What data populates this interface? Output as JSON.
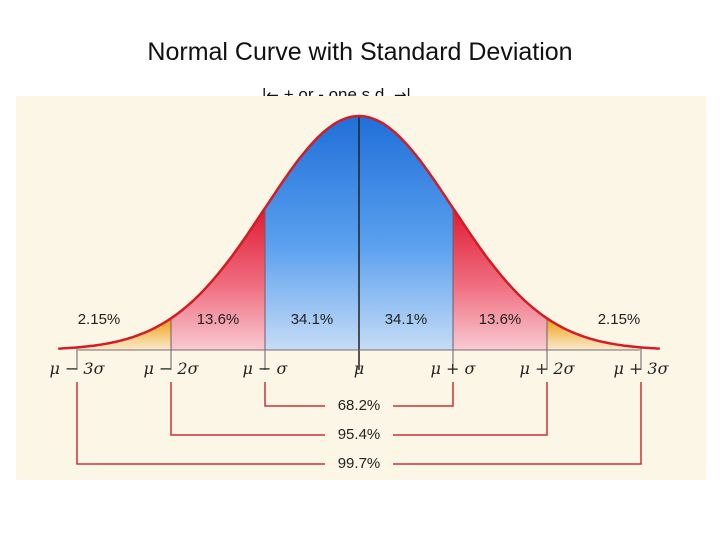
{
  "title": "Normal Curve with Standard Deviation",
  "subtitle": {
    "bar_left": "|",
    "arrow_left": "←",
    "text": " + or -  one s.d. ",
    "arrow_right": "→",
    "bar_right": "|"
  },
  "colors": {
    "background": "#fbf6e6",
    "center_band": "#2f7fe0",
    "second_band": "#e8253d",
    "tail_band": "#f2a51c",
    "curve": "#d41c24",
    "brackets": "#c9343a",
    "mean_line": "#222222"
  },
  "chart_data": {
    "type": "area",
    "title": "Normal Curve with Standard Deviation",
    "xlim": [
      -3.2,
      3.2
    ],
    "boundaries": [
      -3,
      -2,
      -1,
      0,
      1,
      2,
      3
    ],
    "tick_labels": [
      "μ − 3σ",
      "μ − 2σ",
      "μ − σ",
      "μ",
      "μ + σ",
      "μ + 2σ",
      "μ + 3σ"
    ],
    "segments": [
      {
        "from": -3,
        "to": -2,
        "percent": "2.15%",
        "band": "tail"
      },
      {
        "from": -2,
        "to": -1,
        "percent": "13.6%",
        "band": "second"
      },
      {
        "from": -1,
        "to": 0,
        "percent": "34.1%",
        "band": "center"
      },
      {
        "from": 0,
        "to": 1,
        "percent": "34.1%",
        "band": "center"
      },
      {
        "from": 1,
        "to": 2,
        "percent": "13.6%",
        "band": "second"
      },
      {
        "from": 2,
        "to": 3,
        "percent": "2.15%",
        "band": "tail"
      }
    ],
    "ranges": [
      {
        "from": -1,
        "to": 1,
        "percent": "68.2%"
      },
      {
        "from": -2,
        "to": 2,
        "percent": "95.4%"
      },
      {
        "from": -3,
        "to": 3,
        "percent": "99.7%"
      }
    ]
  }
}
